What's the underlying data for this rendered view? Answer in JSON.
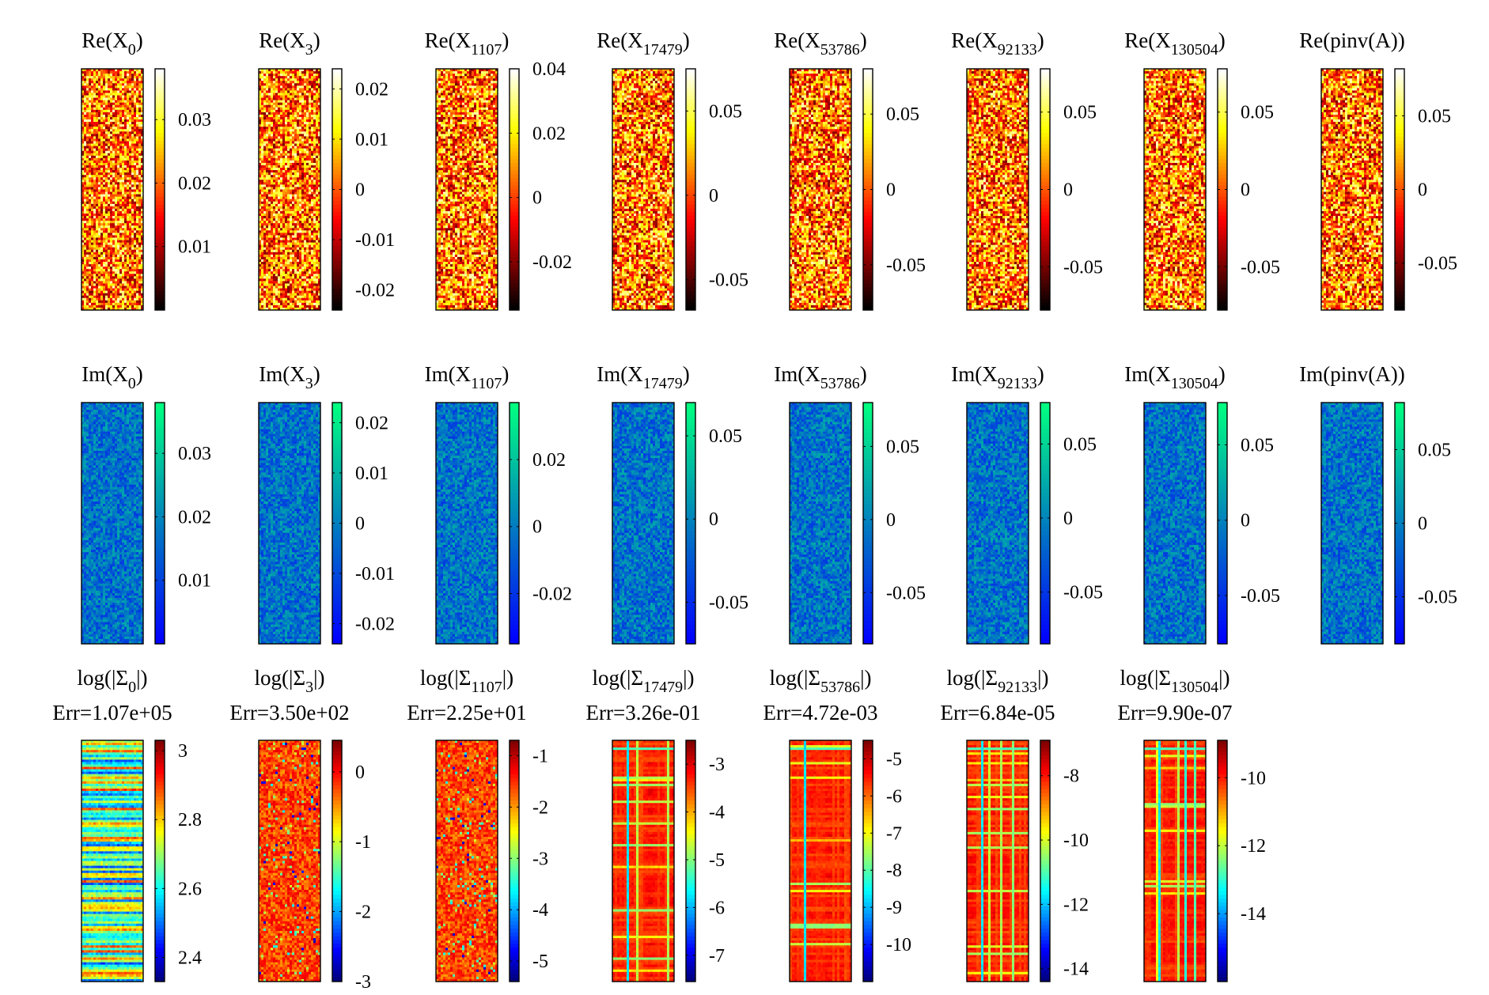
{
  "chart_data": {
    "type": "heatmap",
    "rows": [
      {
        "row": "real",
        "colormap": "hot",
        "panels": [
          {
            "title": "Re(X",
            "subscript": "0",
            "title_suffix": ")",
            "ticks": [
              {
                "label": "0.03",
                "value": 0.03
              },
              {
                "label": "0.02",
                "value": 0.02
              },
              {
                "label": "0.01",
                "value": 0.01
              }
            ],
            "clim": [
              0.0,
              0.038
            ]
          },
          {
            "title": "Re(X",
            "subscript": "3",
            "title_suffix": ")",
            "ticks": [
              {
                "label": "0.02",
                "value": 0.02
              },
              {
                "label": "0.01",
                "value": 0.01
              },
              {
                "label": "0",
                "value": 0
              },
              {
                "label": "-0.01",
                "value": -0.01
              },
              {
                "label": "-0.02",
                "value": -0.02
              }
            ],
            "clim": [
              -0.024,
              0.024
            ]
          },
          {
            "title": "Re(X",
            "subscript": "1107",
            "title_suffix": ")",
            "ticks": [
              {
                "label": "0.04",
                "value": 0.04
              },
              {
                "label": "0.02",
                "value": 0.02
              },
              {
                "label": "0",
                "value": 0
              },
              {
                "label": "-0.02",
                "value": -0.02
              }
            ],
            "clim": [
              -0.035,
              0.04
            ]
          },
          {
            "title": "Re(X",
            "subscript": "17479",
            "title_suffix": ")",
            "ticks": [
              {
                "label": "0.05",
                "value": 0.05
              },
              {
                "label": "0",
                "value": 0
              },
              {
                "label": "-0.05",
                "value": -0.05
              }
            ],
            "clim": [
              -0.068,
              0.075
            ]
          },
          {
            "title": "Re(X",
            "subscript": "53786",
            "title_suffix": ")",
            "ticks": [
              {
                "label": "0.05",
                "value": 0.05
              },
              {
                "label": "0",
                "value": 0
              },
              {
                "label": "-0.05",
                "value": -0.05
              }
            ],
            "clim": [
              -0.08,
              0.08
            ]
          },
          {
            "title": "Re(X",
            "subscript": "92133",
            "title_suffix": ")",
            "ticks": [
              {
                "label": "0.05",
                "value": 0.05
              },
              {
                "label": "0",
                "value": 0
              },
              {
                "label": "-0.05",
                "value": -0.05
              }
            ],
            "clim": [
              -0.078,
              0.078
            ]
          },
          {
            "title": "Re(X",
            "subscript": "130504",
            "title_suffix": ")",
            "ticks": [
              {
                "label": "0.05",
                "value": 0.05
              },
              {
                "label": "0",
                "value": 0
              },
              {
                "label": "-0.05",
                "value": -0.05
              }
            ],
            "clim": [
              -0.078,
              0.078
            ]
          },
          {
            "title": "Re(pinv(A))",
            "subscript": "",
            "title_suffix": "",
            "ticks": [
              {
                "label": "0.05",
                "value": 0.05
              },
              {
                "label": "0",
                "value": 0
              },
              {
                "label": "-0.05",
                "value": -0.05
              }
            ],
            "clim": [
              -0.082,
              0.082
            ]
          }
        ]
      },
      {
        "row": "imag",
        "colormap": "winter",
        "panels": [
          {
            "title": "Im(X",
            "subscript": "0",
            "title_suffix": ")",
            "ticks": [
              {
                "label": "0.03",
                "value": 0.03
              },
              {
                "label": "0.02",
                "value": 0.02
              },
              {
                "label": "0.01",
                "value": 0.01
              }
            ],
            "clim": [
              0.0,
              0.038
            ]
          },
          {
            "title": "Im(X",
            "subscript": "3",
            "title_suffix": ")",
            "ticks": [
              {
                "label": "0.02",
                "value": 0.02
              },
              {
                "label": "0.01",
                "value": 0.01
              },
              {
                "label": "0",
                "value": 0
              },
              {
                "label": "-0.01",
                "value": -0.01
              },
              {
                "label": "-0.02",
                "value": -0.02
              }
            ],
            "clim": [
              -0.024,
              0.024
            ]
          },
          {
            "title": "Im(X",
            "subscript": "1107",
            "title_suffix": ")",
            "ticks": [
              {
                "label": "0.02",
                "value": 0.02
              },
              {
                "label": "0",
                "value": 0
              },
              {
                "label": "-0.02",
                "value": -0.02
              }
            ],
            "clim": [
              -0.035,
              0.037
            ]
          },
          {
            "title": "Im(X",
            "subscript": "17479",
            "title_suffix": ")",
            "ticks": [
              {
                "label": "0.05",
                "value": 0.05
              },
              {
                "label": "0",
                "value": 0
              },
              {
                "label": "-0.05",
                "value": -0.05
              }
            ],
            "clim": [
              -0.075,
              0.07
            ]
          },
          {
            "title": "Im(X",
            "subscript": "53786",
            "title_suffix": ")",
            "ticks": [
              {
                "label": "0.05",
                "value": 0.05
              },
              {
                "label": "0",
                "value": 0
              },
              {
                "label": "-0.05",
                "value": -0.05
              }
            ],
            "clim": [
              -0.085,
              0.08
            ]
          },
          {
            "title": "Im(X",
            "subscript": "92133",
            "title_suffix": ")",
            "ticks": [
              {
                "label": "0.05",
                "value": 0.05
              },
              {
                "label": "0",
                "value": 0
              },
              {
                "label": "-0.05",
                "value": -0.05
              }
            ],
            "clim": [
              -0.085,
              0.078
            ]
          },
          {
            "title": "Im(X",
            "subscript": "130504",
            "title_suffix": ")",
            "ticks": [
              {
                "label": "0.05",
                "value": 0.05
              },
              {
                "label": "0",
                "value": 0
              },
              {
                "label": "-0.05",
                "value": -0.05
              }
            ],
            "clim": [
              -0.082,
              0.078
            ]
          },
          {
            "title": "Im(pinv(A))",
            "subscript": "",
            "title_suffix": "",
            "ticks": [
              {
                "label": "0.05",
                "value": 0.05
              },
              {
                "label": "0",
                "value": 0
              },
              {
                "label": "-0.05",
                "value": -0.05
              }
            ],
            "clim": [
              -0.082,
              0.082
            ]
          }
        ]
      },
      {
        "row": "sigma",
        "colormap": "jet",
        "panels": [
          {
            "title": "log(|Σ",
            "subscript": "0",
            "title_suffix": "|)",
            "err": "Err=1.07e+05",
            "ticks": [
              {
                "label": "3",
                "value": 3
              },
              {
                "label": "2.8",
                "value": 2.8
              },
              {
                "label": "2.6",
                "value": 2.6
              },
              {
                "label": "2.4",
                "value": 2.4
              }
            ],
            "clim": [
              2.33,
              3.03
            ],
            "pattern": "rows"
          },
          {
            "title": "log(|Σ",
            "subscript": "3",
            "title_suffix": "|)",
            "err": "Err=3.50e+02",
            "ticks": [
              {
                "label": "0",
                "value": 0
              },
              {
                "label": "-1",
                "value": -1
              },
              {
                "label": "-2",
                "value": -2
              },
              {
                "label": "-3",
                "value": -3
              }
            ],
            "clim": [
              -3.0,
              0.45
            ],
            "pattern": "noise"
          },
          {
            "title": "log(|Σ",
            "subscript": "1107",
            "title_suffix": "|)",
            "err": "Err=2.25e+01",
            "ticks": [
              {
                "label": "-1",
                "value": -1
              },
              {
                "label": "-2",
                "value": -2
              },
              {
                "label": "-3",
                "value": -3
              },
              {
                "label": "-4",
                "value": -4
              },
              {
                "label": "-5",
                "value": -5
              }
            ],
            "clim": [
              -5.4,
              -0.7
            ],
            "pattern": "noise"
          },
          {
            "title": "log(|Σ",
            "subscript": "17479",
            "title_suffix": "|)",
            "err": "Err=3.26e-01",
            "ticks": [
              {
                "label": "-3",
                "value": -3
              },
              {
                "label": "-4",
                "value": -4
              },
              {
                "label": "-5",
                "value": -5
              },
              {
                "label": "-6",
                "value": -6
              },
              {
                "label": "-7",
                "value": -7
              }
            ],
            "clim": [
              -7.55,
              -2.5
            ],
            "pattern": "plaid"
          },
          {
            "title": "log(|Σ",
            "subscript": "53786",
            "title_suffix": "|)",
            "err": "Err=4.72e-03",
            "ticks": [
              {
                "label": "-5",
                "value": -5
              },
              {
                "label": "-6",
                "value": -6
              },
              {
                "label": "-7",
                "value": -7
              },
              {
                "label": "-8",
                "value": -8
              },
              {
                "label": "-9",
                "value": -9
              },
              {
                "label": "-10",
                "value": -10
              }
            ],
            "clim": [
              -11.0,
              -4.5
            ],
            "pattern": "plaid"
          },
          {
            "title": "log(|Σ",
            "subscript": "92133",
            "title_suffix": "|)",
            "err": "Err=6.84e-05",
            "ticks": [
              {
                "label": "-8",
                "value": -8
              },
              {
                "label": "-10",
                "value": -10
              },
              {
                "label": "-12",
                "value": -12
              },
              {
                "label": "-14",
                "value": -14
              }
            ],
            "clim": [
              -14.4,
              -6.9
            ],
            "pattern": "plaid"
          },
          {
            "title": "log(|Σ",
            "subscript": "130504",
            "title_suffix": "|)",
            "err": "Err=9.90e-07",
            "ticks": [
              {
                "label": "-10",
                "value": -10
              },
              {
                "label": "-12",
                "value": -12
              },
              {
                "label": "-14",
                "value": -14
              }
            ],
            "clim": [
              -16.0,
              -8.9
            ],
            "pattern": "plaid"
          }
        ]
      }
    ]
  }
}
